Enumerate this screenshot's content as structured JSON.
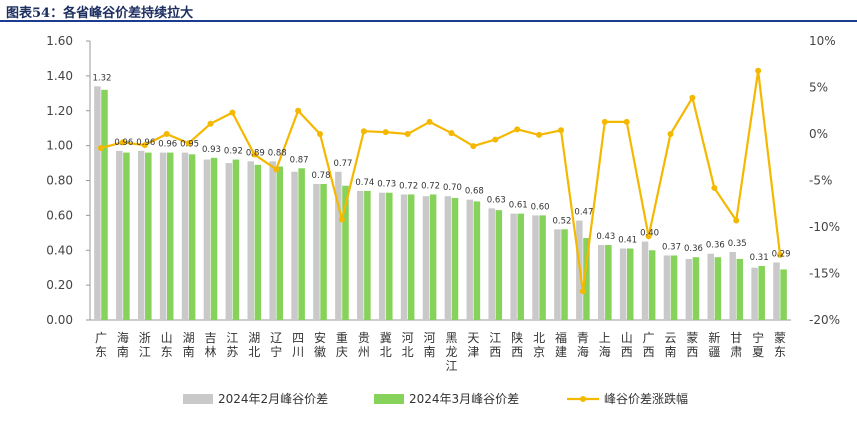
{
  "header": {
    "title": "图表54：各省峰谷价差持续拉大"
  },
  "colors": {
    "feb": "#c9c9c9",
    "mar": "#86d25a",
    "line": "#f5b800",
    "title_rule": "#1c3d8f"
  },
  "chart_data": {
    "type": "bar",
    "title": "图表54：各省峰谷价差持续拉大",
    "categories": [
      [
        "广",
        "东"
      ],
      [
        "海",
        "南"
      ],
      [
        "浙",
        "江"
      ],
      [
        "山",
        "东"
      ],
      [
        "湖",
        "南"
      ],
      [
        "吉",
        "林"
      ],
      [
        "江",
        "苏"
      ],
      [
        "湖",
        "北"
      ],
      [
        "辽",
        "宁"
      ],
      [
        "四",
        "川"
      ],
      [
        "安",
        "徽"
      ],
      [
        "重",
        "庆"
      ],
      [
        "贵",
        "州"
      ],
      [
        "冀",
        "北"
      ],
      [
        "河",
        "北"
      ],
      [
        "河",
        "南"
      ],
      [
        "黑",
        "龙",
        "江"
      ],
      [
        "天",
        "津"
      ],
      [
        "江",
        "西"
      ],
      [
        "陕",
        "西"
      ],
      [
        "北",
        "京"
      ],
      [
        "福",
        "建"
      ],
      [
        "青",
        "海"
      ],
      [
        "上",
        "海"
      ],
      [
        "山",
        "西"
      ],
      [
        "广",
        "西"
      ],
      [
        "云",
        "南"
      ],
      [
        "蒙",
        "西"
      ],
      [
        "新",
        "疆"
      ],
      [
        "甘",
        "肃"
      ],
      [
        "宁",
        "夏"
      ],
      [
        "蒙",
        "东"
      ]
    ],
    "series": [
      {
        "name": "2024年2月峰谷价差",
        "type": "bar",
        "axis": "left",
        "values": [
          1.34,
          0.97,
          0.97,
          0.96,
          0.96,
          0.92,
          0.9,
          0.91,
          0.91,
          0.85,
          0.78,
          0.85,
          0.74,
          0.73,
          0.72,
          0.71,
          0.71,
          0.69,
          0.64,
          0.61,
          0.6,
          0.52,
          0.57,
          0.43,
          0.41,
          0.45,
          0.37,
          0.35,
          0.38,
          0.39,
          0.3,
          0.33
        ]
      },
      {
        "name": "2024年3月峰谷价差",
        "type": "bar",
        "axis": "left",
        "values": [
          1.32,
          0.96,
          0.96,
          0.96,
          0.95,
          0.93,
          0.92,
          0.89,
          0.88,
          0.87,
          0.78,
          0.77,
          0.74,
          0.73,
          0.72,
          0.72,
          0.7,
          0.68,
          0.63,
          0.61,
          0.6,
          0.52,
          0.47,
          0.43,
          0.41,
          0.4,
          0.37,
          0.36,
          0.36,
          0.35,
          0.31,
          0.29
        ]
      },
      {
        "name": "峰谷价差涨跌幅",
        "type": "line",
        "axis": "right",
        "values": [
          -1.5,
          -0.9,
          -1.2,
          0.0,
          -1.0,
          1.1,
          2.3,
          -2.2,
          -3.8,
          2.5,
          0.0,
          -9.2,
          0.3,
          0.2,
          0.0,
          1.3,
          0.1,
          -1.3,
          -0.6,
          0.5,
          -0.1,
          0.4,
          -16.9,
          1.3,
          1.3,
          -11.0,
          0.0,
          3.9,
          -5.8,
          -9.3,
          6.8,
          -13.0
        ]
      }
    ],
    "data_labels": [
      "1.32",
      "0.96",
      "0.96",
      "0.96",
      "0.95",
      "0.93",
      "0.92",
      "0.89",
      "0.88",
      "0.87",
      "0.78",
      "0.77",
      "0.74",
      "0.73",
      "0.72",
      "0.72",
      "0.70",
      "0.68",
      "0.63",
      "0.61",
      "0.60",
      "0.52",
      "0.47",
      "0.43",
      "0.41",
      "0.40",
      "0.37",
      "0.36",
      "0.36",
      "0.35",
      "0.31",
      "0.29"
    ],
    "y_left": {
      "min": 0,
      "max": 1.6,
      "step": 0.2,
      "ticks": [
        "0.00",
        "0.20",
        "0.40",
        "0.60",
        "0.80",
        "1.00",
        "1.20",
        "1.40",
        "1.60"
      ]
    },
    "y_right": {
      "min": -20,
      "max": 10,
      "step": 5,
      "ticks": [
        "-20%",
        "-15%",
        "-10%",
        "-5%",
        "0%",
        "5%",
        "10%"
      ]
    },
    "legend": {
      "position": "bottom",
      "items": [
        "2024年2月峰谷价差",
        "2024年3月峰谷价差",
        "峰谷价差涨跌幅"
      ]
    },
    "grid": false
  }
}
